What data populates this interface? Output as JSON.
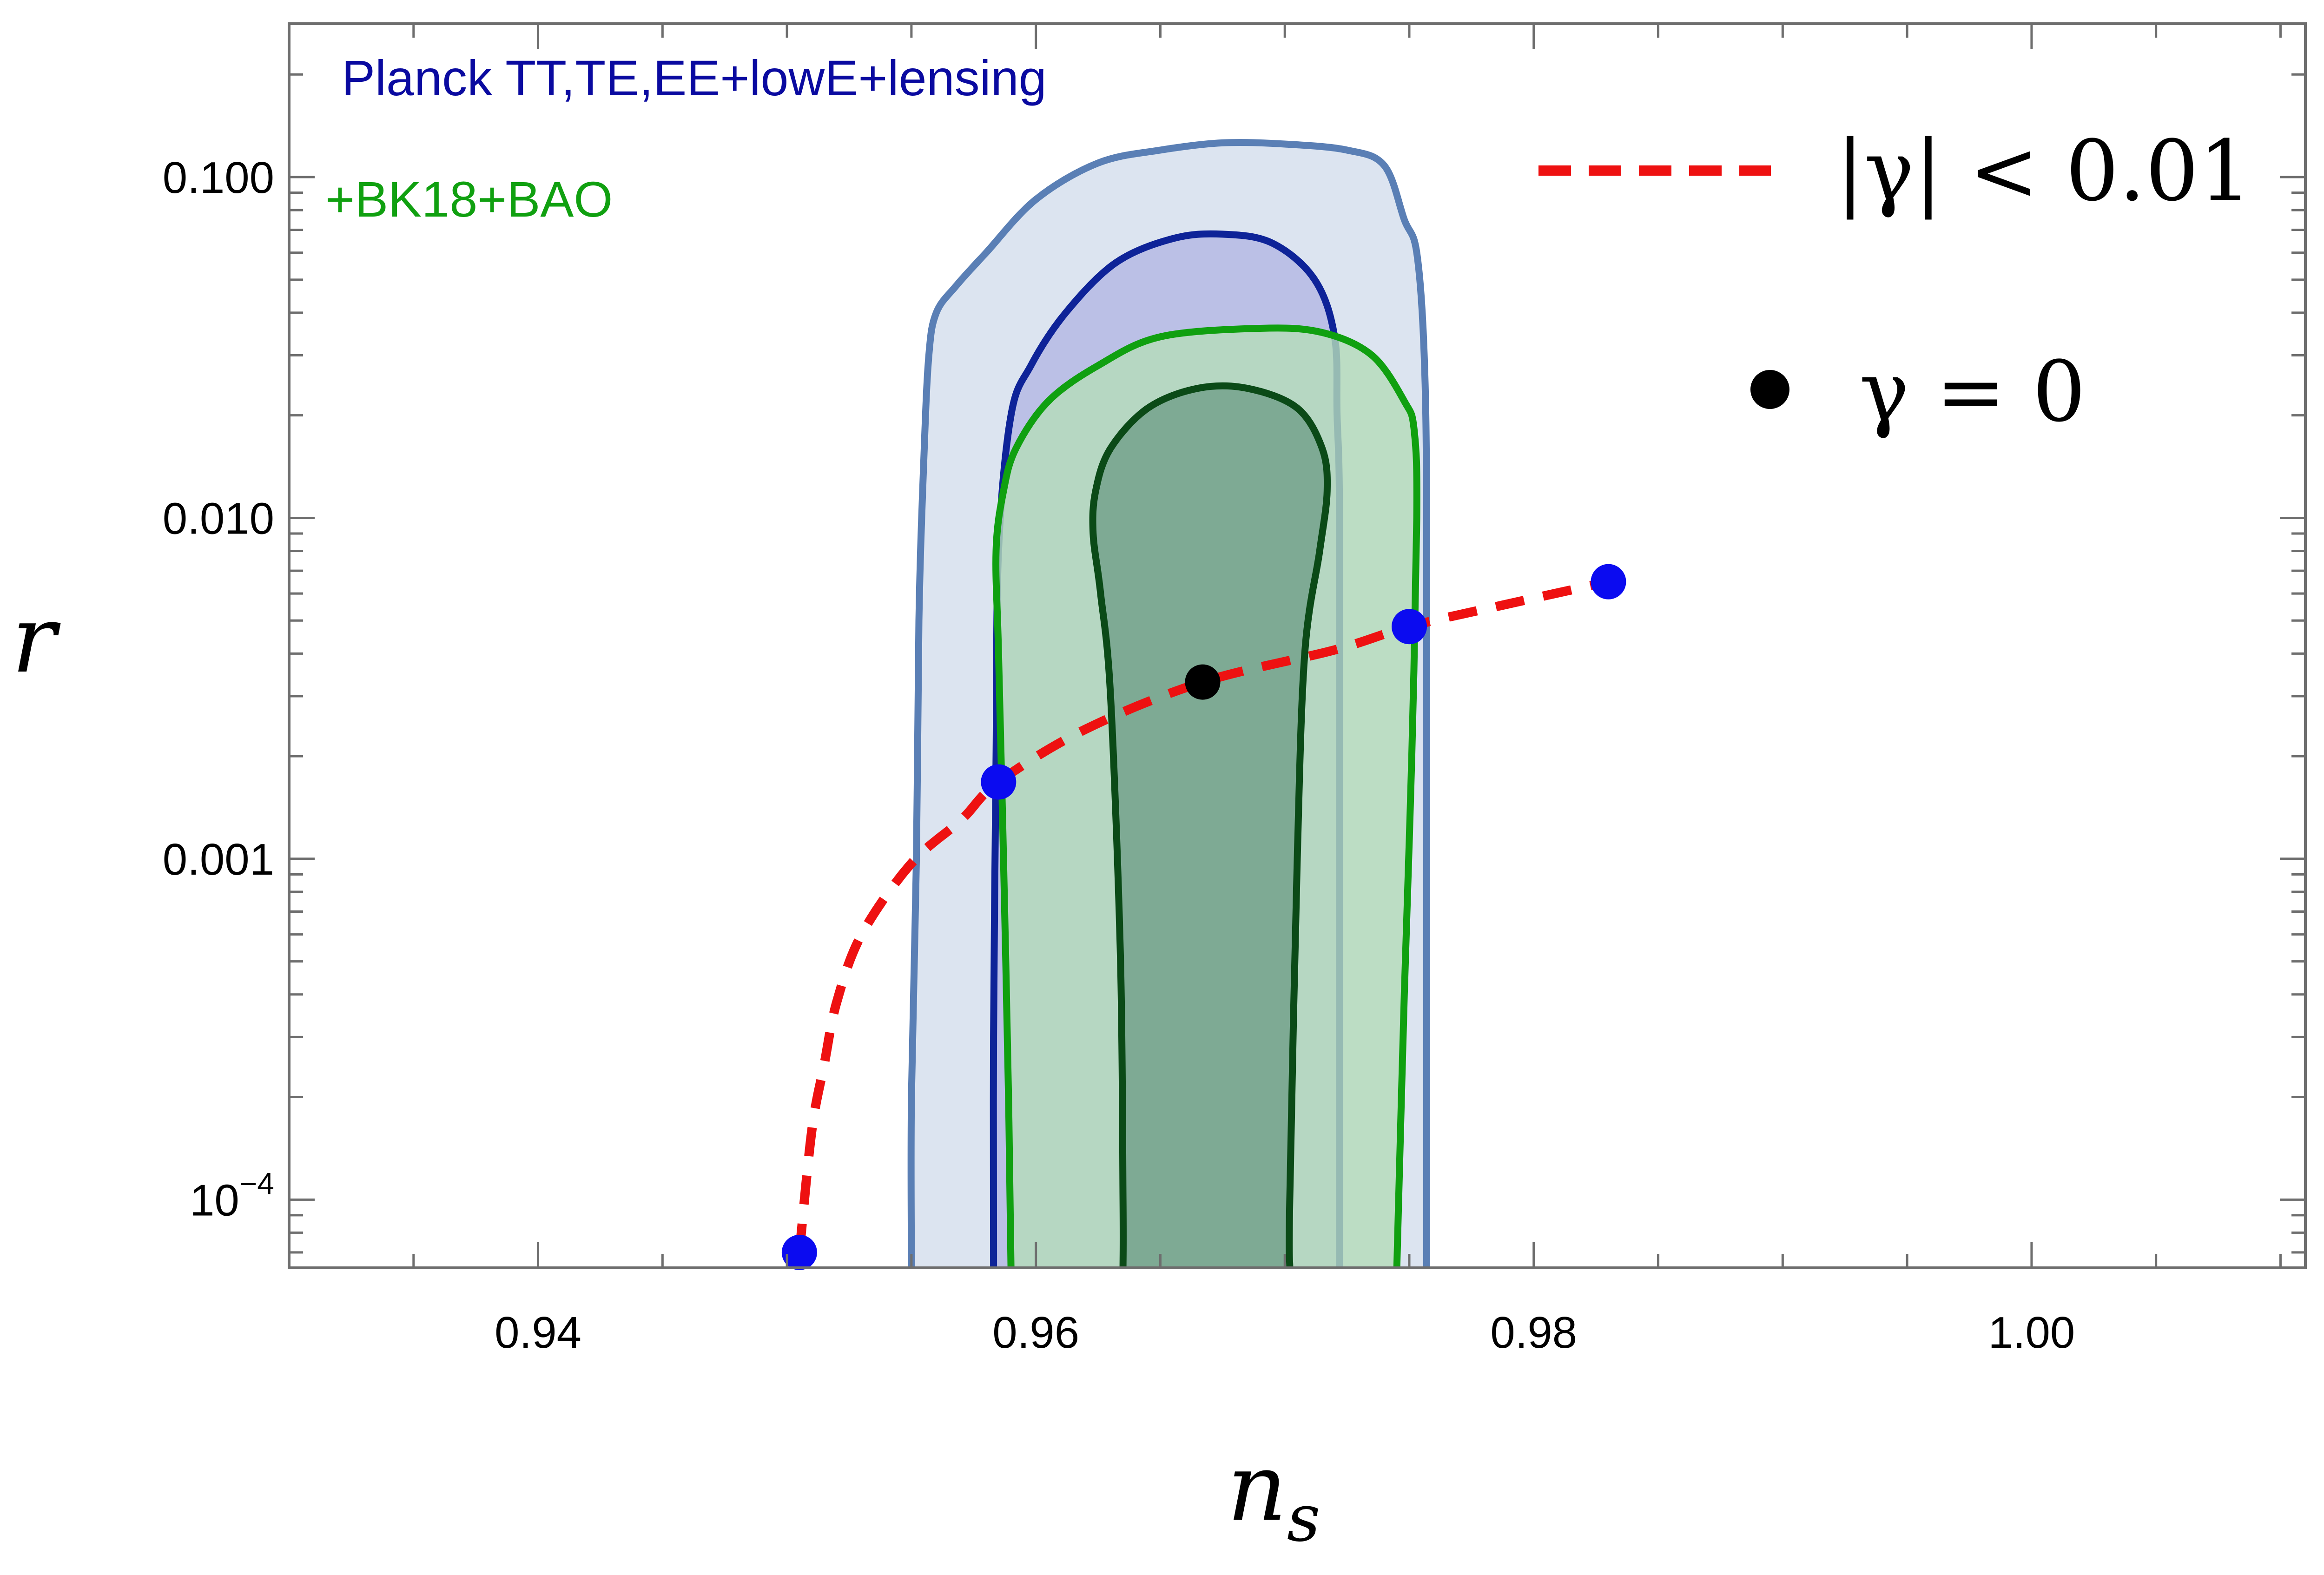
{
  "chart_data": {
    "type": "scatter",
    "xlabel": "n_s",
    "xlabel_main": "n",
    "xlabel_sub": "s",
    "ylabel": "r",
    "xlim": [
      0.93,
      1.011
    ],
    "ylim_log10": [
      -4.2,
      -0.55
    ],
    "y_scale": "log",
    "grid": false,
    "x_ticks": [
      {
        "value": 0.94,
        "label": "0.94"
      },
      {
        "value": 0.96,
        "label": "0.96"
      },
      {
        "value": 0.98,
        "label": "0.98"
      },
      {
        "value": 1.0,
        "label": "1.00"
      }
    ],
    "y_ticks": [
      {
        "value": 0.1,
        "label": "0.100"
      },
      {
        "value": 0.01,
        "label": "0.010"
      },
      {
        "value": 0.001,
        "label": "0.001"
      },
      {
        "value": 0.0001,
        "label_base": "10",
        "label_exp": "−4"
      }
    ],
    "dataset_labels": [
      {
        "text": "Planck TT,TE,EE+lowE+lensing",
        "color": "#0a0aa0"
      },
      {
        "text": "+BK18+BAO",
        "color": "#10a010"
      }
    ],
    "legend": [
      {
        "name": "|γ| < 0.01",
        "symbol": "dashed-line",
        "color": "#ee1111",
        "placement": "top-right"
      },
      {
        "name": "γ = 0",
        "symbol": "dot",
        "color": "#000000",
        "placement": "right"
      }
    ],
    "contours": [
      {
        "name": "Planck 95%",
        "fill": "#dce4f0",
        "stroke": "#5a7fb5",
        "points": [
          [
            0.955,
            6.31e-05
          ],
          [
            0.955,
            0.0002
          ],
          [
            0.9552,
            0.001
          ],
          [
            0.9553,
            0.005
          ],
          [
            0.9555,
            0.015
          ],
          [
            0.9557,
            0.03
          ],
          [
            0.956,
            0.04
          ],
          [
            0.9568,
            0.048
          ],
          [
            0.958,
            0.06
          ],
          [
            0.96,
            0.086
          ],
          [
            0.9625,
            0.11
          ],
          [
            0.965,
            0.12
          ],
          [
            0.9675,
            0.126
          ],
          [
            0.97,
            0.125
          ],
          [
            0.9725,
            0.12
          ],
          [
            0.974,
            0.108
          ],
          [
            0.9748,
            0.075
          ],
          [
            0.9753,
            0.06
          ],
          [
            0.9756,
            0.03
          ],
          [
            0.9757,
            0.01
          ],
          [
            0.9757,
            0.001
          ],
          [
            0.9757,
            6.31e-05
          ]
        ]
      },
      {
        "name": "Planck 68%",
        "fill": "#b3b8e3",
        "stroke": "#0e2398",
        "points": [
          [
            0.9583,
            6.31e-05
          ],
          [
            0.9583,
            0.0003
          ],
          [
            0.9584,
            0.002
          ],
          [
            0.9585,
            0.008
          ],
          [
            0.959,
            0.02
          ],
          [
            0.9598,
            0.028
          ],
          [
            0.9612,
            0.04
          ],
          [
            0.9632,
            0.056
          ],
          [
            0.9655,
            0.066
          ],
          [
            0.9675,
            0.068
          ],
          [
            0.9695,
            0.064
          ],
          [
            0.9712,
            0.05
          ],
          [
            0.972,
            0.034
          ],
          [
            0.9721,
            0.02
          ],
          [
            0.9722,
            0.01
          ],
          [
            0.9722,
            0.001
          ],
          [
            0.9722,
            6.31e-05
          ]
        ]
      },
      {
        "name": "BK18+BAO 95%",
        "fill": "#b4dcba",
        "stroke": "#10a010",
        "points": [
          [
            0.959,
            6.31e-05
          ],
          [
            0.9589,
            0.0002
          ],
          [
            0.9587,
            0.001
          ],
          [
            0.9585,
            0.004
          ],
          [
            0.9584,
            0.008
          ],
          [
            0.9587,
            0.012
          ],
          [
            0.9592,
            0.016
          ],
          [
            0.9605,
            0.022
          ],
          [
            0.9625,
            0.028
          ],
          [
            0.965,
            0.034
          ],
          [
            0.969,
            0.036
          ],
          [
            0.9715,
            0.035
          ],
          [
            0.9735,
            0.03
          ],
          [
            0.9748,
            0.022
          ],
          [
            0.9752,
            0.018
          ],
          [
            0.9753,
            0.01
          ],
          [
            0.9751,
            0.002
          ],
          [
            0.9748,
            0.0004
          ],
          [
            0.9745,
            6.31e-05
          ]
        ]
      },
      {
        "name": "BK18+BAO 68%",
        "fill": "#72a08a",
        "stroke": "#0b4a17",
        "points": [
          [
            0.9635,
            6.31e-05
          ],
          [
            0.9635,
            0.0001
          ],
          [
            0.9634,
            0.0005
          ],
          [
            0.963,
            0.003
          ],
          [
            0.9626,
            0.006
          ],
          [
            0.9623,
            0.009
          ],
          [
            0.9624,
            0.012
          ],
          [
            0.963,
            0.016
          ],
          [
            0.9645,
            0.021
          ],
          [
            0.9665,
            0.024
          ],
          [
            0.9685,
            0.024
          ],
          [
            0.9705,
            0.021
          ],
          [
            0.9715,
            0.016
          ],
          [
            0.9717,
            0.012
          ],
          [
            0.9714,
            0.008
          ],
          [
            0.9708,
            0.004
          ],
          [
            0.9705,
            0.001
          ],
          [
            0.9702,
            0.0001
          ],
          [
            0.9702,
            6.31e-05
          ]
        ]
      }
    ],
    "series": [
      {
        "name": "|γ| < 0.01",
        "color": "#ee1111",
        "style": "dashed",
        "x": [
          0.9505,
          0.951,
          0.9515,
          0.952,
          0.953,
          0.955,
          0.957,
          0.9585,
          0.962,
          0.9667,
          0.972,
          0.975,
          0.979,
          0.983
        ],
        "y": [
          7e-05,
          0.00016,
          0.00025,
          0.00038,
          0.0006,
          0.00097,
          0.0013,
          0.00168,
          0.0024,
          0.0033,
          0.0041,
          0.0048,
          0.0056,
          0.0065
        ]
      }
    ],
    "points": [
      {
        "x": 0.9505,
        "y": 7e-05,
        "color": "#0b0bf0"
      },
      {
        "x": 0.9585,
        "y": 0.00168,
        "color": "#0b0bf0"
      },
      {
        "x": 0.9667,
        "y": 0.0033,
        "color": "#000000"
      },
      {
        "x": 0.975,
        "y": 0.0048,
        "color": "#0b0bf0"
      },
      {
        "x": 0.983,
        "y": 0.0065,
        "color": "#0b0bf0"
      }
    ]
  }
}
